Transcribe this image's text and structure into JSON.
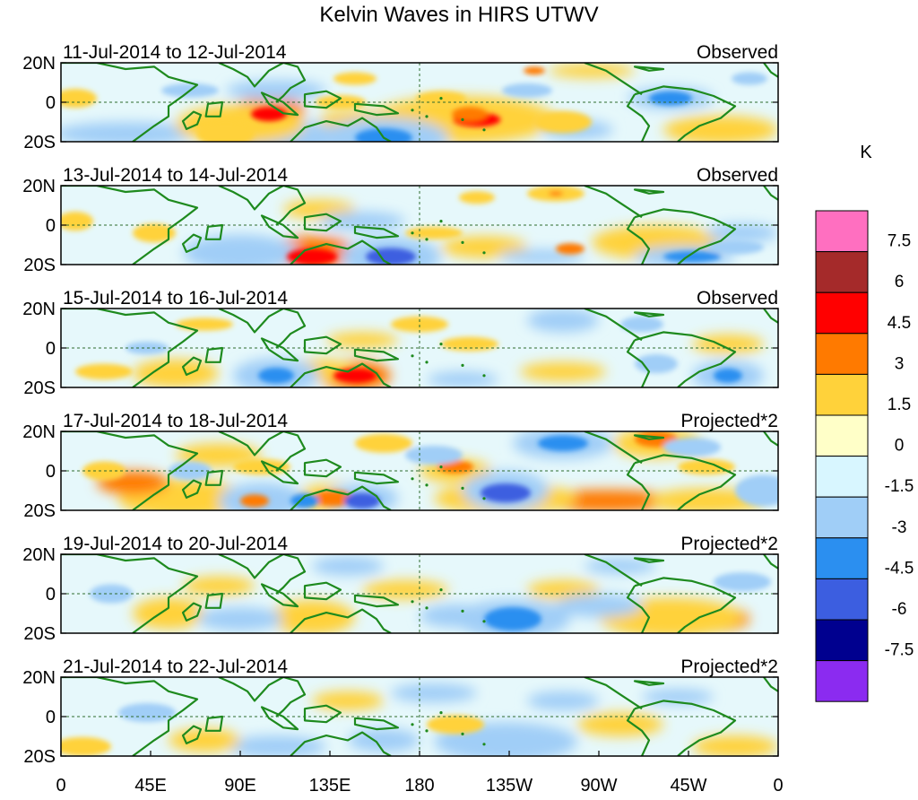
{
  "title": "Kelvin Waves in HIRS UTWV",
  "y_ticks": [
    "20N",
    "0",
    "20S"
  ],
  "x_ticks": [
    "0",
    "45E",
    "90E",
    "135E",
    "180",
    "135W",
    "90W",
    "45W",
    "0"
  ],
  "panels": [
    {
      "period": "11-Jul-2014 to 12-Jul-2014",
      "type": "Observed"
    },
    {
      "period": "13-Jul-2014 to 14-Jul-2014",
      "type": "Observed"
    },
    {
      "period": "15-Jul-2014 to 16-Jul-2014",
      "type": "Observed"
    },
    {
      "period": "17-Jul-2014 to 18-Jul-2014",
      "type": "Projected*2"
    },
    {
      "period": "19-Jul-2014 to 20-Jul-2014",
      "type": "Projected*2"
    },
    {
      "period": "21-Jul-2014 to 22-Jul-2014",
      "type": "Projected*2"
    }
  ],
  "colorbar": {
    "unit": "K",
    "levels": [
      "7.5",
      "6",
      "4.5",
      "3",
      "1.5",
      "0",
      "-1.5",
      "-3",
      "-4.5",
      "-6",
      "-7.5"
    ],
    "colors": [
      "#ff6fc0",
      "#a52a2a",
      "#ff0000",
      "#ff7a00",
      "#ffd23a",
      "#ffffc8",
      "#d8f6ff",
      "#a0cef7",
      "#2b8ff0",
      "#3c5ee0",
      "#00008f",
      "#8b2bf0"
    ]
  },
  "palette": {
    "land": "#1e8a1e",
    "border": "#2e6b2e",
    "equator": "#2e6b2e",
    "dateline": "#2e6b2e"
  },
  "anomalies": [
    [
      [
        0.58,
        0.72,
        0.06,
        0.16,
        "#ff7a00"
      ],
      [
        0.58,
        0.72,
        0.033,
        0.09,
        "#ff0000"
      ],
      [
        0.92,
        0.85,
        0.08,
        0.18,
        "#ffd23a"
      ],
      [
        0.56,
        0.72,
        0.13,
        0.3,
        "#ffd23a"
      ],
      [
        0.41,
        0.72,
        0.05,
        0.13,
        "#ffd23a"
      ],
      [
        0.53,
        0.45,
        0.035,
        0.09,
        "#ffd23a"
      ],
      [
        0.39,
        0.5,
        0.035,
        0.09,
        "#ffd23a"
      ],
      [
        0.74,
        0.1,
        0.06,
        0.09,
        "#ffd23a"
      ],
      [
        0.02,
        0.45,
        0.03,
        0.12,
        "#ffd23a"
      ],
      [
        0.41,
        0.2,
        0.03,
        0.08,
        "#ffd23a"
      ],
      [
        0.85,
        0.45,
        0.03,
        0.09,
        "#2b8ff0"
      ],
      [
        0.85,
        0.45,
        0.06,
        0.14,
        "#a0cef7"
      ],
      [
        0.96,
        0.2,
        0.025,
        0.08,
        "#a0cef7"
      ],
      [
        0.72,
        0.85,
        0.05,
        0.12,
        "#a0cef7"
      ],
      [
        0.66,
        0.1,
        0.015,
        0.05,
        "#ff7a00"
      ],
      [
        0.09,
        0.9,
        0.05,
        0.09,
        "#2b8ff0"
      ],
      [
        0.09,
        0.9,
        0.1,
        0.15,
        "#a0cef7"
      ],
      [
        0.3,
        0.95,
        0.05,
        0.12,
        "#2b8ff0"
      ],
      [
        0.3,
        0.95,
        0.09,
        0.25,
        "#a0cef7"
      ],
      [
        0.23,
        0.9,
        0.02,
        0.07,
        "#ff7a00"
      ],
      [
        0.23,
        0.9,
        0.04,
        0.16,
        "#ffd23a"
      ],
      [
        0.29,
        0.6,
        0.05,
        0.16,
        "#ff7a00"
      ],
      [
        0.29,
        0.65,
        0.025,
        0.09,
        "#ff0000"
      ],
      [
        0.45,
        0.95,
        0.04,
        0.12,
        "#2b8ff0"
      ],
      [
        0.45,
        0.95,
        0.09,
        0.25,
        "#a0cef7"
      ],
      [
        0.3,
        0.35,
        0.07,
        0.13,
        "#a0cef7"
      ],
      [
        0.25,
        0.78,
        0.09,
        0.25,
        "#ffd23a"
      ],
      [
        0.57,
        0.65,
        0.025,
        0.09,
        "#ff7a00"
      ],
      [
        0.65,
        0.35,
        0.035,
        0.09,
        "#a0cef7"
      ],
      [
        0.18,
        0.35,
        0.04,
        0.09,
        "#a0cef7"
      ],
      [
        0.7,
        0.75,
        0.04,
        0.14,
        "#ffd23a"
      ]
    ],
    [
      [
        0.83,
        0.72,
        0.09,
        0.22,
        "#ffd23a"
      ],
      [
        0.69,
        0.1,
        0.04,
        0.1,
        "#ffd23a"
      ],
      [
        0.69,
        0.1,
        0.01,
        0.03,
        "#ff7a00"
      ],
      [
        0.35,
        0.9,
        0.035,
        0.1,
        "#ff0000"
      ],
      [
        0.35,
        0.85,
        0.065,
        0.21,
        "#ff7a00"
      ],
      [
        0.71,
        0.8,
        0.02,
        0.07,
        "#ff7a00"
      ],
      [
        0.36,
        0.3,
        0.05,
        0.12,
        "#ffd23a"
      ],
      [
        0.02,
        0.45,
        0.025,
        0.12,
        "#ffd23a"
      ],
      [
        0.13,
        0.6,
        0.03,
        0.12,
        "#ffd23a"
      ],
      [
        0.58,
        0.15,
        0.025,
        0.08,
        "#ffd23a"
      ],
      [
        0.59,
        0.78,
        0.06,
        0.14,
        "#ffd23a"
      ],
      [
        0.87,
        0.9,
        0.07,
        0.13,
        "#a0cef7"
      ],
      [
        0.95,
        0.6,
        0.05,
        0.12,
        "#a0cef7"
      ],
      [
        0.25,
        0.85,
        0.05,
        0.16,
        "#3c5ee0"
      ],
      [
        0.25,
        0.85,
        0.08,
        0.23,
        "#a0cef7"
      ],
      [
        0.46,
        0.9,
        0.035,
        0.11,
        "#3c5ee0"
      ],
      [
        0.46,
        0.9,
        0.07,
        0.25,
        "#a0cef7"
      ],
      [
        0.88,
        0.9,
        0.04,
        0.07,
        "#2b8ff0"
      ],
      [
        0.94,
        0.78,
        0.04,
        0.09,
        "#a0cef7"
      ],
      [
        0.67,
        0.9,
        0.06,
        0.09,
        "#a0cef7"
      ],
      [
        0.52,
        0.6,
        0.04,
        0.08,
        "#ffd23a"
      ],
      [
        0.42,
        0.45,
        0.06,
        0.12,
        "#a0cef7"
      ]
    ],
    [
      [
        0.41,
        0.85,
        0.03,
        0.09,
        "#ff0000"
      ],
      [
        0.41,
        0.85,
        0.05,
        0.19,
        "#ff7a00"
      ],
      [
        0.16,
        0.82,
        0.06,
        0.18,
        "#ffd23a"
      ],
      [
        0.36,
        0.78,
        0.05,
        0.14,
        "#ffd23a"
      ],
      [
        0.5,
        0.2,
        0.04,
        0.1,
        "#ffd23a"
      ],
      [
        0.42,
        0.4,
        0.05,
        0.1,
        "#ffd23a"
      ],
      [
        0.7,
        0.15,
        0.05,
        0.15,
        "#a0cef7"
      ],
      [
        0.81,
        0.2,
        0.03,
        0.1,
        "#a0cef7"
      ],
      [
        0.7,
        0.8,
        0.06,
        0.12,
        "#ffd23a"
      ],
      [
        0.06,
        0.8,
        0.04,
        0.1,
        "#ffd23a"
      ],
      [
        0.2,
        0.2,
        0.04,
        0.08,
        "#ffd23a"
      ],
      [
        0.3,
        0.85,
        0.025,
        0.1,
        "#2b8ff0"
      ],
      [
        0.3,
        0.85,
        0.06,
        0.22,
        "#a0cef7"
      ],
      [
        0.93,
        0.85,
        0.02,
        0.09,
        "#2b8ff0"
      ],
      [
        0.93,
        0.85,
        0.05,
        0.19,
        "#a0cef7"
      ],
      [
        0.83,
        0.7,
        0.03,
        0.12,
        "#a0cef7"
      ],
      [
        0.12,
        0.5,
        0.03,
        0.08,
        "#a0cef7"
      ],
      [
        0.56,
        0.9,
        0.05,
        0.1,
        "#a0cef7"
      ],
      [
        0.93,
        0.45,
        0.05,
        0.12,
        "#ffd23a"
      ],
      [
        0.57,
        0.45,
        0.04,
        0.09,
        "#ffd23a"
      ]
    ],
    [
      [
        0.76,
        0.88,
        0.1,
        0.14,
        "#ff7a00"
      ],
      [
        0.62,
        0.85,
        0.1,
        0.2,
        "#ffd23a"
      ],
      [
        0.9,
        0.88,
        0.08,
        0.16,
        "#ffd23a"
      ],
      [
        0.17,
        0.88,
        0.05,
        0.14,
        "#ff7a00"
      ],
      [
        0.17,
        0.85,
        0.09,
        0.25,
        "#ffd23a"
      ],
      [
        0.38,
        0.85,
        0.03,
        0.1,
        "#ff7a00"
      ],
      [
        0.38,
        0.85,
        0.05,
        0.19,
        "#ffd23a"
      ],
      [
        0.27,
        0.88,
        0.02,
        0.08,
        "#ff7a00"
      ],
      [
        0.27,
        0.85,
        0.045,
        0.18,
        "#ffd23a"
      ],
      [
        0.83,
        0.1,
        0.03,
        0.1,
        "#ff7a00"
      ],
      [
        0.83,
        0.15,
        0.06,
        0.19,
        "#ffd23a"
      ],
      [
        0.55,
        0.45,
        0.025,
        0.08,
        "#ff7a00"
      ],
      [
        0.55,
        0.5,
        0.05,
        0.15,
        "#ffd23a"
      ],
      [
        0.06,
        0.5,
        0.03,
        0.12,
        "#ffd23a"
      ],
      [
        0.1,
        0.65,
        0.05,
        0.15,
        "#ff7a00"
      ],
      [
        0.45,
        0.15,
        0.04,
        0.12,
        "#ffd23a"
      ],
      [
        0.22,
        0.3,
        0.06,
        0.15,
        "#ffd23a"
      ],
      [
        0.7,
        0.15,
        0.035,
        0.1,
        "#2b8ff0"
      ],
      [
        0.7,
        0.15,
        0.07,
        0.2,
        "#a0cef7"
      ],
      [
        0.62,
        0.78,
        0.035,
        0.12,
        "#3c5ee0"
      ],
      [
        0.62,
        0.75,
        0.06,
        0.25,
        "#a0cef7"
      ],
      [
        0.28,
        0.88,
        0.06,
        0.23,
        "#a0cef7"
      ],
      [
        0.98,
        0.8,
        0.02,
        0.09,
        "#3c5ee0"
      ],
      [
        0.98,
        0.75,
        0.04,
        0.2,
        "#a0cef7"
      ],
      [
        0.42,
        0.88,
        0.025,
        0.1,
        "#3c5ee0"
      ],
      [
        0.42,
        0.85,
        0.05,
        0.19,
        "#a0cef7"
      ],
      [
        0.34,
        0.88,
        0.02,
        0.09,
        "#2b8ff0"
      ],
      [
        0.88,
        0.2,
        0.04,
        0.12,
        "#a0cef7"
      ],
      [
        0.52,
        0.3,
        0.04,
        0.12,
        "#a0cef7"
      ],
      [
        0.18,
        0.5,
        0.03,
        0.12,
        "#a0cef7"
      ],
      [
        0.9,
        0.45,
        0.04,
        0.1,
        "#ffd23a"
      ],
      [
        0.28,
        0.45,
        0.04,
        0.1,
        "#ffd23a"
      ]
    ],
    [
      [
        0.9,
        0.82,
        0.06,
        0.18,
        "#ff7a00"
      ],
      [
        0.85,
        0.8,
        0.1,
        0.25,
        "#ffd23a"
      ],
      [
        0.15,
        0.75,
        0.05,
        0.2,
        "#ffd23a"
      ],
      [
        0.07,
        0.5,
        0.03,
        0.12,
        "#a0cef7"
      ],
      [
        0.63,
        0.82,
        0.04,
        0.15,
        "#2b8ff0"
      ],
      [
        0.63,
        0.82,
        0.08,
        0.25,
        "#a0cef7"
      ],
      [
        0.35,
        0.8,
        0.06,
        0.22,
        "#ffd23a"
      ],
      [
        0.48,
        0.45,
        0.06,
        0.12,
        "#ffd23a"
      ],
      [
        0.7,
        0.45,
        0.05,
        0.12,
        "#ffd23a"
      ],
      [
        0.25,
        0.82,
        0.06,
        0.15,
        "#a0cef7"
      ],
      [
        0.4,
        0.15,
        0.05,
        0.12,
        "#a0cef7"
      ],
      [
        0.78,
        0.15,
        0.05,
        0.1,
        "#a0cef7"
      ],
      [
        0.55,
        0.78,
        0.05,
        0.15,
        "#a0cef7"
      ],
      [
        0.75,
        0.65,
        0.06,
        0.15,
        "#a0cef7"
      ],
      [
        0.22,
        0.4,
        0.05,
        0.12,
        "#ffd23a"
      ],
      [
        0.95,
        0.35,
        0.04,
        0.12,
        "#a0cef7"
      ]
    ],
    [
      [
        0.94,
        0.88,
        0.06,
        0.14,
        "#ffd23a"
      ],
      [
        0.03,
        0.88,
        0.04,
        0.12,
        "#ffd23a"
      ],
      [
        0.78,
        0.6,
        0.06,
        0.15,
        "#ffd23a"
      ],
      [
        0.62,
        0.85,
        0.06,
        0.15,
        "#2b8ff0"
      ],
      [
        0.62,
        0.82,
        0.1,
        0.25,
        "#a0cef7"
      ],
      [
        0.3,
        0.88,
        0.07,
        0.14,
        "#a0cef7"
      ],
      [
        0.4,
        0.3,
        0.05,
        0.12,
        "#ffd23a"
      ],
      [
        0.52,
        0.2,
        0.06,
        0.12,
        "#a0cef7"
      ],
      [
        0.55,
        0.6,
        0.04,
        0.12,
        "#ffd23a"
      ],
      [
        0.2,
        0.8,
        0.05,
        0.15,
        "#ffd23a"
      ],
      [
        0.12,
        0.45,
        0.04,
        0.12,
        "#a0cef7"
      ],
      [
        0.86,
        0.25,
        0.05,
        0.1,
        "#a0cef7"
      ],
      [
        0.45,
        0.8,
        0.05,
        0.15,
        "#a0cef7"
      ],
      [
        0.7,
        0.3,
        0.05,
        0.12,
        "#a0cef7"
      ]
    ]
  ]
}
